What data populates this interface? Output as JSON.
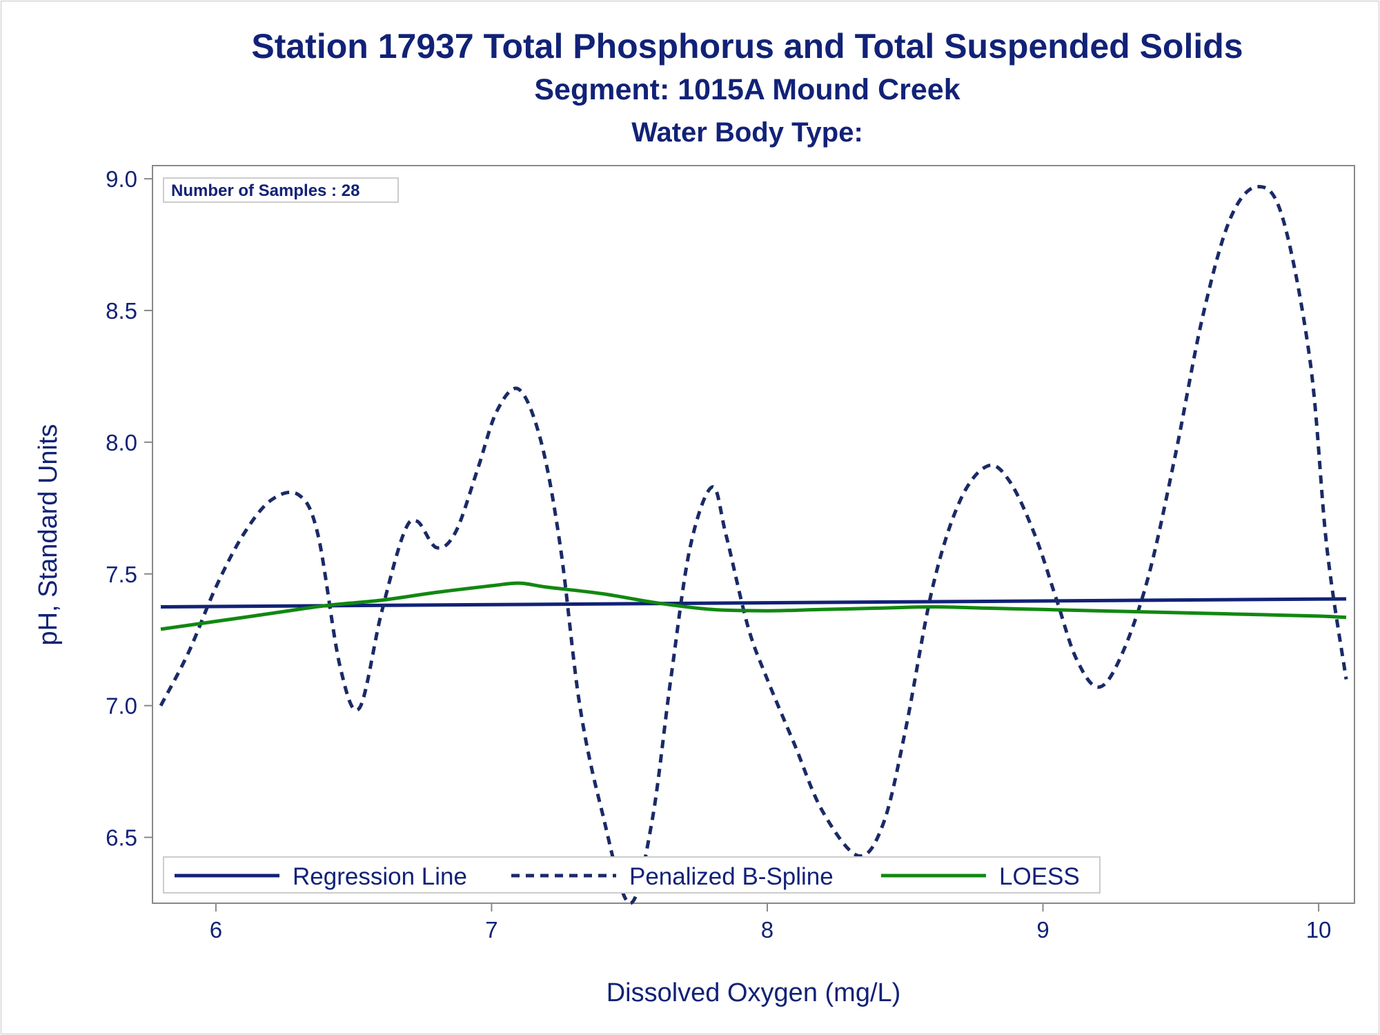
{
  "titles": {
    "line1": "Station 17937  Total Phosphorus and Total Suspended Solids",
    "line2": "Segment: 1015A  Mound Creek",
    "line3": "Water Body Type:"
  },
  "inset": {
    "samples_label": "Number of Samples : 28"
  },
  "colors": {
    "text": "#112277",
    "regression": "#112277",
    "spline": "#1a2a66",
    "loess": "#118811",
    "frame": "#888888"
  },
  "chart_data": {
    "type": "line",
    "xlabel": "Dissolved Oxygen (mg/L)",
    "ylabel": "pH, Standard Units",
    "xlim": [
      5.77,
      10.13
    ],
    "ylim": [
      6.25,
      9.05
    ],
    "x_ticks": [
      6,
      7,
      8,
      9,
      10
    ],
    "x_tick_labels": [
      "6",
      "7",
      "8",
      "9",
      "10"
    ],
    "y_ticks": [
      6.5,
      7.0,
      7.5,
      8.0,
      8.5,
      9.0
    ],
    "y_tick_labels": [
      "6.5",
      "7.0",
      "7.5",
      "8.0",
      "8.5",
      "9.0"
    ],
    "grid": false,
    "legend_position": "bottom-inside",
    "series": [
      {
        "name": "Regression Line",
        "style": "solid",
        "x": [
          5.8,
          10.1
        ],
        "y": [
          7.375,
          7.405
        ]
      },
      {
        "name": "Penalized B-Spline",
        "style": "dashed",
        "x": [
          5.8,
          5.9,
          6.0,
          6.1,
          6.2,
          6.3,
          6.37,
          6.45,
          6.52,
          6.6,
          6.68,
          6.73,
          6.8,
          6.87,
          6.95,
          7.02,
          7.1,
          7.18,
          7.25,
          7.32,
          7.4,
          7.5,
          7.58,
          7.65,
          7.72,
          7.8,
          7.85,
          7.93,
          8.0,
          8.1,
          8.2,
          8.33,
          8.42,
          8.5,
          8.6,
          8.7,
          8.8,
          8.88,
          8.97,
          9.05,
          9.12,
          9.2,
          9.28,
          9.38,
          9.48,
          9.58,
          9.68,
          9.78,
          9.87,
          9.97,
          10.03,
          10.1
        ],
        "y": [
          7.0,
          7.2,
          7.45,
          7.65,
          7.78,
          7.8,
          7.65,
          7.15,
          6.99,
          7.35,
          7.65,
          7.7,
          7.6,
          7.66,
          7.9,
          8.12,
          8.2,
          8.0,
          7.6,
          7.0,
          6.6,
          6.25,
          6.55,
          7.1,
          7.6,
          7.83,
          7.65,
          7.3,
          7.1,
          6.85,
          6.6,
          6.43,
          6.55,
          6.9,
          7.45,
          7.78,
          7.91,
          7.85,
          7.65,
          7.4,
          7.18,
          7.07,
          7.18,
          7.48,
          7.95,
          8.48,
          8.85,
          8.97,
          8.85,
          8.3,
          7.6,
          7.1
        ]
      },
      {
        "name": "LOESS",
        "style": "solid",
        "x": [
          5.8,
          6.0,
          6.2,
          6.4,
          6.6,
          6.8,
          7.0,
          7.1,
          7.2,
          7.4,
          7.6,
          7.8,
          8.0,
          8.2,
          8.4,
          8.6,
          8.8,
          9.0,
          9.2,
          9.4,
          9.6,
          9.8,
          10.0,
          10.1
        ],
        "y": [
          7.29,
          7.32,
          7.35,
          7.38,
          7.4,
          7.43,
          7.455,
          7.465,
          7.45,
          7.425,
          7.39,
          7.365,
          7.36,
          7.365,
          7.37,
          7.375,
          7.37,
          7.365,
          7.36,
          7.355,
          7.35,
          7.345,
          7.34,
          7.335
        ]
      }
    ]
  }
}
